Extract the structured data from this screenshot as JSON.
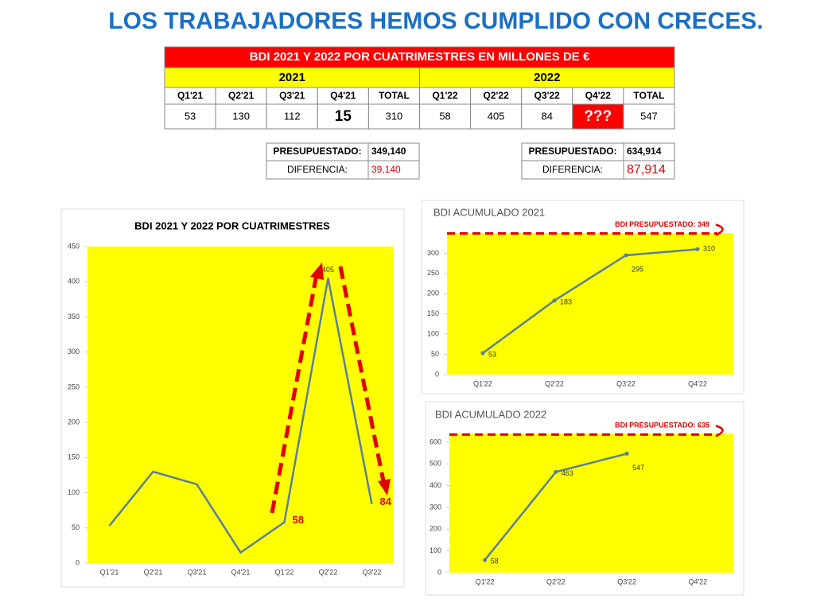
{
  "title": "LOS TRABAJADORES HEMOS CUMPLIDO CON CRECES.",
  "table": {
    "title": "BDI 2021 Y 2022 POR CUATRIMESTRES EN MILLONES DE €",
    "groups": [
      "2021",
      "2022"
    ],
    "headers": [
      "Q1'21",
      "Q2'21",
      "Q3'21",
      "Q4'21",
      "TOTAL",
      "Q1'22",
      "Q2'22",
      "Q3'22",
      "Q4'22",
      "TOTAL"
    ],
    "row": [
      53,
      130,
      112,
      15,
      310,
      58,
      405,
      84,
      "???",
      547
    ]
  },
  "budget": [
    {
      "label": "PRESUPUESTADO:",
      "value": "349,140",
      "diff_label": "DIFERENCIA:",
      "diff": "39,140"
    },
    {
      "label": "PRESUPUESTADO:",
      "value": "634,914",
      "diff_label": "DIFERENCIA:",
      "diff": "87,914"
    }
  ],
  "chart_data": [
    {
      "type": "line",
      "title": "BDI 2021 Y 2022 POR CUATRIMESTRES",
      "categories": [
        "Q1'21",
        "Q2'21",
        "Q3'21",
        "Q4'21",
        "Q1'22",
        "Q2'22",
        "Q3'22"
      ],
      "values": [
        53,
        130,
        112,
        15,
        58,
        405,
        84
      ],
      "value_labels": [
        null,
        null,
        null,
        null,
        "58",
        "405",
        "84"
      ],
      "color": "#5a7f9a",
      "background": "#ffff00",
      "ylim": [
        0,
        450
      ],
      "yticks": [
        0,
        50,
        100,
        150,
        200,
        250,
        300,
        350,
        400,
        450
      ],
      "markers": false
    },
    {
      "type": "line",
      "title": "BDI ACUMULADO 2021",
      "categories": [
        "Q1'22",
        "Q2'22",
        "Q3'22",
        "Q4'22"
      ],
      "values": [
        53,
        183,
        295,
        310
      ],
      "color": "#5a7f9a",
      "background": "#ffff00",
      "ylim": [
        0,
        350
      ],
      "yticks": [
        0,
        50,
        100,
        150,
        200,
        250,
        300
      ],
      "markers": true,
      "reference": {
        "value": 349,
        "label": "BDI PRESUPUESTADO: 349",
        "color": "#e00000"
      }
    },
    {
      "type": "line",
      "title": "BDI ACUMULADO 2022",
      "categories": [
        "Q1'22",
        "Q2'22",
        "Q3'22",
        "Q4'22"
      ],
      "values": [
        58,
        463,
        547,
        null
      ],
      "color": "#5a7f9a",
      "background": "#ffff00",
      "ylim": [
        0,
        640
      ],
      "yticks": [
        0,
        100,
        200,
        300,
        400,
        500,
        600
      ],
      "markers": true,
      "reference": {
        "value": 635,
        "label": "BDI PRESUPUESTADO: 635",
        "color": "#e00000"
      }
    }
  ]
}
